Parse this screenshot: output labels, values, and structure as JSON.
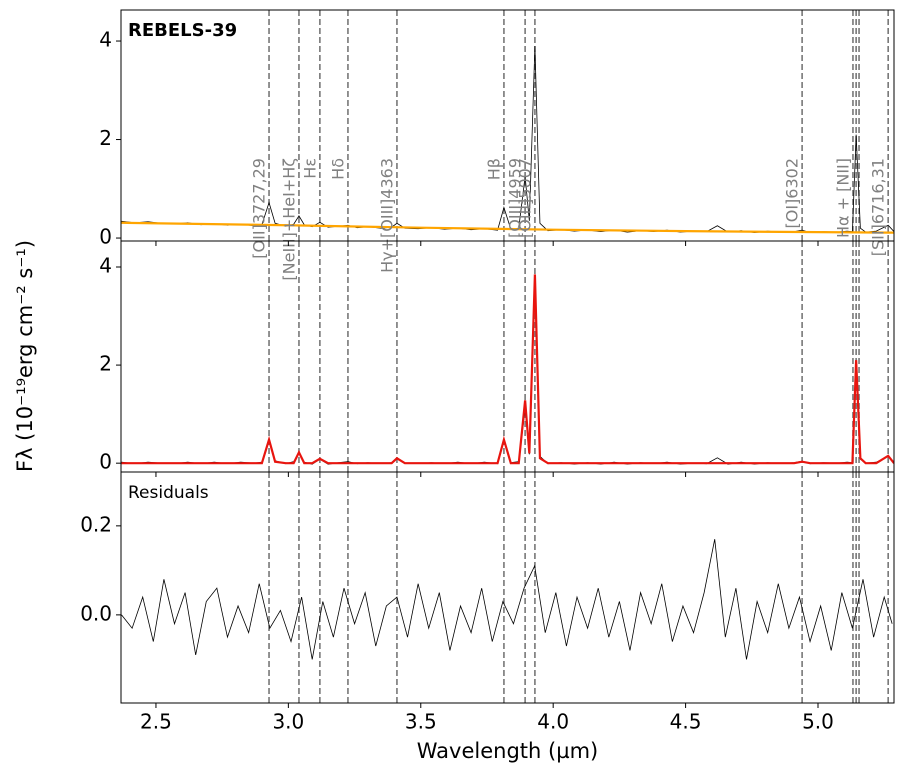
{
  "chart_data": [
    {
      "type": "line",
      "title": "REBELS-39",
      "xlim": [
        2.368,
        5.287
      ],
      "ylim": [
        -0.06,
        4.63
      ],
      "yticks": [
        0,
        2,
        4
      ],
      "x": [
        2.37,
        2.42,
        2.47,
        2.52,
        2.57,
        2.62,
        2.67,
        2.72,
        2.77,
        2.82,
        2.87,
        2.9,
        2.927,
        2.95,
        2.99,
        3.02,
        3.04,
        3.06,
        3.09,
        3.119,
        3.15,
        3.19,
        3.225,
        3.26,
        3.3,
        3.35,
        3.39,
        3.41,
        3.44,
        3.49,
        3.54,
        3.59,
        3.64,
        3.69,
        3.74,
        3.79,
        3.814,
        3.84,
        3.87,
        3.894,
        3.91,
        3.931,
        3.95,
        3.98,
        4.03,
        4.08,
        4.13,
        4.18,
        4.23,
        4.28,
        4.33,
        4.38,
        4.43,
        4.48,
        4.53,
        4.58,
        4.62,
        4.66,
        4.71,
        4.76,
        4.81,
        4.86,
        4.91,
        4.94,
        4.97,
        5.02,
        5.07,
        5.11,
        5.13,
        5.144,
        5.16,
        5.18,
        5.22,
        5.265,
        5.287
      ],
      "series": [
        {
          "color": "#000000",
          "values": [
            0.34,
            0.31,
            0.33,
            0.3,
            0.29,
            0.31,
            0.27,
            0.29,
            0.26,
            0.28,
            0.25,
            0.27,
            0.72,
            0.3,
            0.24,
            0.28,
            0.45,
            0.27,
            0.23,
            0.32,
            0.22,
            0.24,
            0.26,
            0.21,
            0.23,
            0.2,
            0.22,
            0.3,
            0.2,
            0.19,
            0.21,
            0.18,
            0.2,
            0.17,
            0.19,
            0.16,
            0.62,
            0.18,
            0.2,
            1.25,
            0.35,
            3.9,
            0.3,
            0.15,
            0.17,
            0.14,
            0.16,
            0.13,
            0.16,
            0.12,
            0.15,
            0.13,
            0.16,
            0.12,
            0.14,
            0.13,
            0.25,
            0.12,
            0.15,
            0.11,
            0.14,
            0.12,
            0.13,
            0.16,
            0.11,
            0.13,
            0.12,
            0.14,
            0.13,
            2.1,
            0.2,
            0.12,
            0.14,
            0.26,
            0.13
          ]
        },
        {
          "color": "#ffa500",
          "x": [
            2.37,
            3.0,
            3.5,
            4.0,
            4.5,
            5.0,
            5.287
          ],
          "values": [
            0.31,
            0.26,
            0.21,
            0.17,
            0.14,
            0.12,
            0.11
          ]
        }
      ],
      "lines": [
        {
          "wavelength": 2.927,
          "label": "[OII]3727,29"
        },
        {
          "wavelength": 3.04,
          "label": "[NeIII]+HeI+Hζ"
        },
        {
          "wavelength": 3.119,
          "label": "Hε"
        },
        {
          "wavelength": 3.225,
          "label": "Hδ"
        },
        {
          "wavelength": 3.41,
          "label": "Hγ+[OIII]4363"
        },
        {
          "wavelength": 3.814,
          "label": "Hβ"
        },
        {
          "wavelength": 3.894,
          "label": "[OIII]4959"
        },
        {
          "wavelength": 3.931,
          "label": "[OIII]5007"
        },
        {
          "wavelength": 4.94,
          "label": "[OI]6302"
        },
        {
          "wavelength": 5.132,
          "label": "Hα + [NII]"
        },
        {
          "wavelength": 5.144
        },
        {
          "wavelength": 5.155
        },
        {
          "wavelength": 5.265,
          "label": "[SII]6716,31"
        }
      ]
    },
    {
      "type": "line",
      "xlim": [
        2.368,
        5.287
      ],
      "ylim": [
        -0.18,
        4.53
      ],
      "yticks": [
        0,
        2,
        4
      ],
      "ylabel": "Fλ (10⁻¹⁹erg cm⁻² s⁻¹)",
      "x": [
        2.37,
        2.42,
        2.47,
        2.52,
        2.57,
        2.62,
        2.67,
        2.72,
        2.77,
        2.82,
        2.87,
        2.9,
        2.927,
        2.95,
        2.99,
        3.02,
        3.04,
        3.06,
        3.09,
        3.119,
        3.15,
        3.19,
        3.225,
        3.26,
        3.3,
        3.35,
        3.39,
        3.41,
        3.44,
        3.49,
        3.54,
        3.59,
        3.64,
        3.69,
        3.74,
        3.79,
        3.814,
        3.84,
        3.87,
        3.894,
        3.91,
        3.931,
        3.95,
        3.98,
        4.03,
        4.08,
        4.13,
        4.18,
        4.23,
        4.28,
        4.33,
        4.38,
        4.43,
        4.48,
        4.53,
        4.58,
        4.62,
        4.66,
        4.71,
        4.76,
        4.81,
        4.86,
        4.91,
        4.94,
        4.97,
        5.02,
        5.07,
        5.11,
        5.13,
        5.144,
        5.16,
        5.18,
        5.22,
        5.265,
        5.287
      ],
      "series": [
        {
          "color": "#000000",
          "values": [
            0.02,
            -0.01,
            0.02,
            0.0,
            -0.01,
            0.02,
            -0.01,
            0.02,
            -0.01,
            0.02,
            0.0,
            0.02,
            0.47,
            0.05,
            -0.01,
            0.03,
            0.2,
            0.02,
            -0.02,
            0.08,
            -0.02,
            0.01,
            0.03,
            -0.01,
            0.01,
            -0.01,
            0.01,
            0.1,
            0.0,
            -0.01,
            0.01,
            -0.01,
            0.02,
            -0.01,
            0.02,
            -0.01,
            0.46,
            0.01,
            0.03,
            1.1,
            0.18,
            3.75,
            0.14,
            -0.01,
            0.01,
            -0.02,
            0.01,
            -0.02,
            0.02,
            -0.02,
            0.01,
            -0.01,
            0.02,
            -0.02,
            0.0,
            -0.01,
            0.11,
            -0.02,
            0.02,
            -0.02,
            0.01,
            -0.01,
            0.01,
            0.04,
            -0.01,
            0.01,
            0.0,
            0.02,
            0.01,
            1.98,
            0.08,
            0.0,
            0.02,
            0.14,
            0.01
          ]
        },
        {
          "color": "#e8150f",
          "values": [
            0,
            0,
            0,
            0,
            0,
            0,
            0,
            0,
            0,
            0,
            0,
            0,
            0.48,
            0.03,
            0,
            0,
            0.22,
            0,
            0,
            0.09,
            0,
            0,
            0,
            0,
            0,
            0,
            0,
            0.1,
            0,
            0,
            0,
            0,
            0,
            0,
            0,
            0,
            0.48,
            0,
            0,
            1.28,
            0.2,
            3.85,
            0.1,
            0,
            0,
            0,
            0,
            0,
            0,
            0,
            0,
            0,
            0,
            0,
            0,
            0,
            0,
            0,
            0,
            0,
            0,
            0,
            0,
            0.03,
            0,
            0,
            0,
            0,
            0,
            2.1,
            0.1,
            0,
            0,
            0.15,
            0
          ]
        }
      ]
    },
    {
      "type": "line",
      "title": "Residuals",
      "xlim": [
        2.368,
        5.287
      ],
      "ylim": [
        -0.198,
        0.321
      ],
      "yticks": [
        {
          "value": 0,
          "label": "0.0"
        },
        0.2
      ],
      "xticks": [
        2.5,
        {
          "value": 3,
          "label": "3.0"
        },
        3.5,
        {
          "value": 4,
          "label": "4.0"
        },
        4.5,
        {
          "value": 5,
          "label": "5.0"
        }
      ],
      "xlabel": "Wavelength (µm)",
      "x": [
        2.37,
        2.41,
        2.45,
        2.49,
        2.53,
        2.57,
        2.61,
        2.65,
        2.69,
        2.73,
        2.77,
        2.81,
        2.85,
        2.89,
        2.93,
        2.97,
        3.01,
        3.05,
        3.09,
        3.13,
        3.17,
        3.21,
        3.25,
        3.29,
        3.33,
        3.37,
        3.41,
        3.45,
        3.49,
        3.53,
        3.57,
        3.61,
        3.65,
        3.69,
        3.73,
        3.77,
        3.81,
        3.85,
        3.89,
        3.93,
        3.97,
        4.01,
        4.05,
        4.09,
        4.13,
        4.17,
        4.21,
        4.25,
        4.29,
        4.33,
        4.37,
        4.41,
        4.45,
        4.49,
        4.53,
        4.57,
        4.61,
        4.65,
        4.69,
        4.73,
        4.77,
        4.81,
        4.85,
        4.89,
        4.93,
        4.97,
        5.01,
        5.05,
        5.09,
        5.13,
        5.17,
        5.21,
        5.25,
        5.28
      ],
      "series": [
        {
          "color": "#000000",
          "values": [
            0.0,
            -0.03,
            0.04,
            -0.06,
            0.08,
            -0.02,
            0.05,
            -0.09,
            0.03,
            0.06,
            -0.05,
            0.02,
            -0.04,
            0.07,
            -0.03,
            0.01,
            -0.06,
            0.04,
            -0.1,
            0.03,
            -0.05,
            0.06,
            -0.02,
            0.05,
            -0.07,
            0.02,
            0.04,
            -0.05,
            0.07,
            -0.03,
            0.05,
            -0.08,
            0.02,
            -0.04,
            0.06,
            -0.06,
            0.03,
            -0.02,
            0.06,
            0.11,
            -0.04,
            0.05,
            -0.07,
            0.04,
            -0.03,
            0.06,
            -0.05,
            0.03,
            -0.08,
            0.05,
            -0.02,
            0.07,
            -0.06,
            0.02,
            -0.04,
            0.05,
            0.17,
            -0.05,
            0.06,
            -0.1,
            0.03,
            -0.04,
            0.07,
            -0.03,
            0.04,
            -0.06,
            0.02,
            -0.08,
            0.05,
            -0.03,
            0.08,
            -0.05,
            0.04,
            -0.02
          ]
        }
      ]
    }
  ]
}
